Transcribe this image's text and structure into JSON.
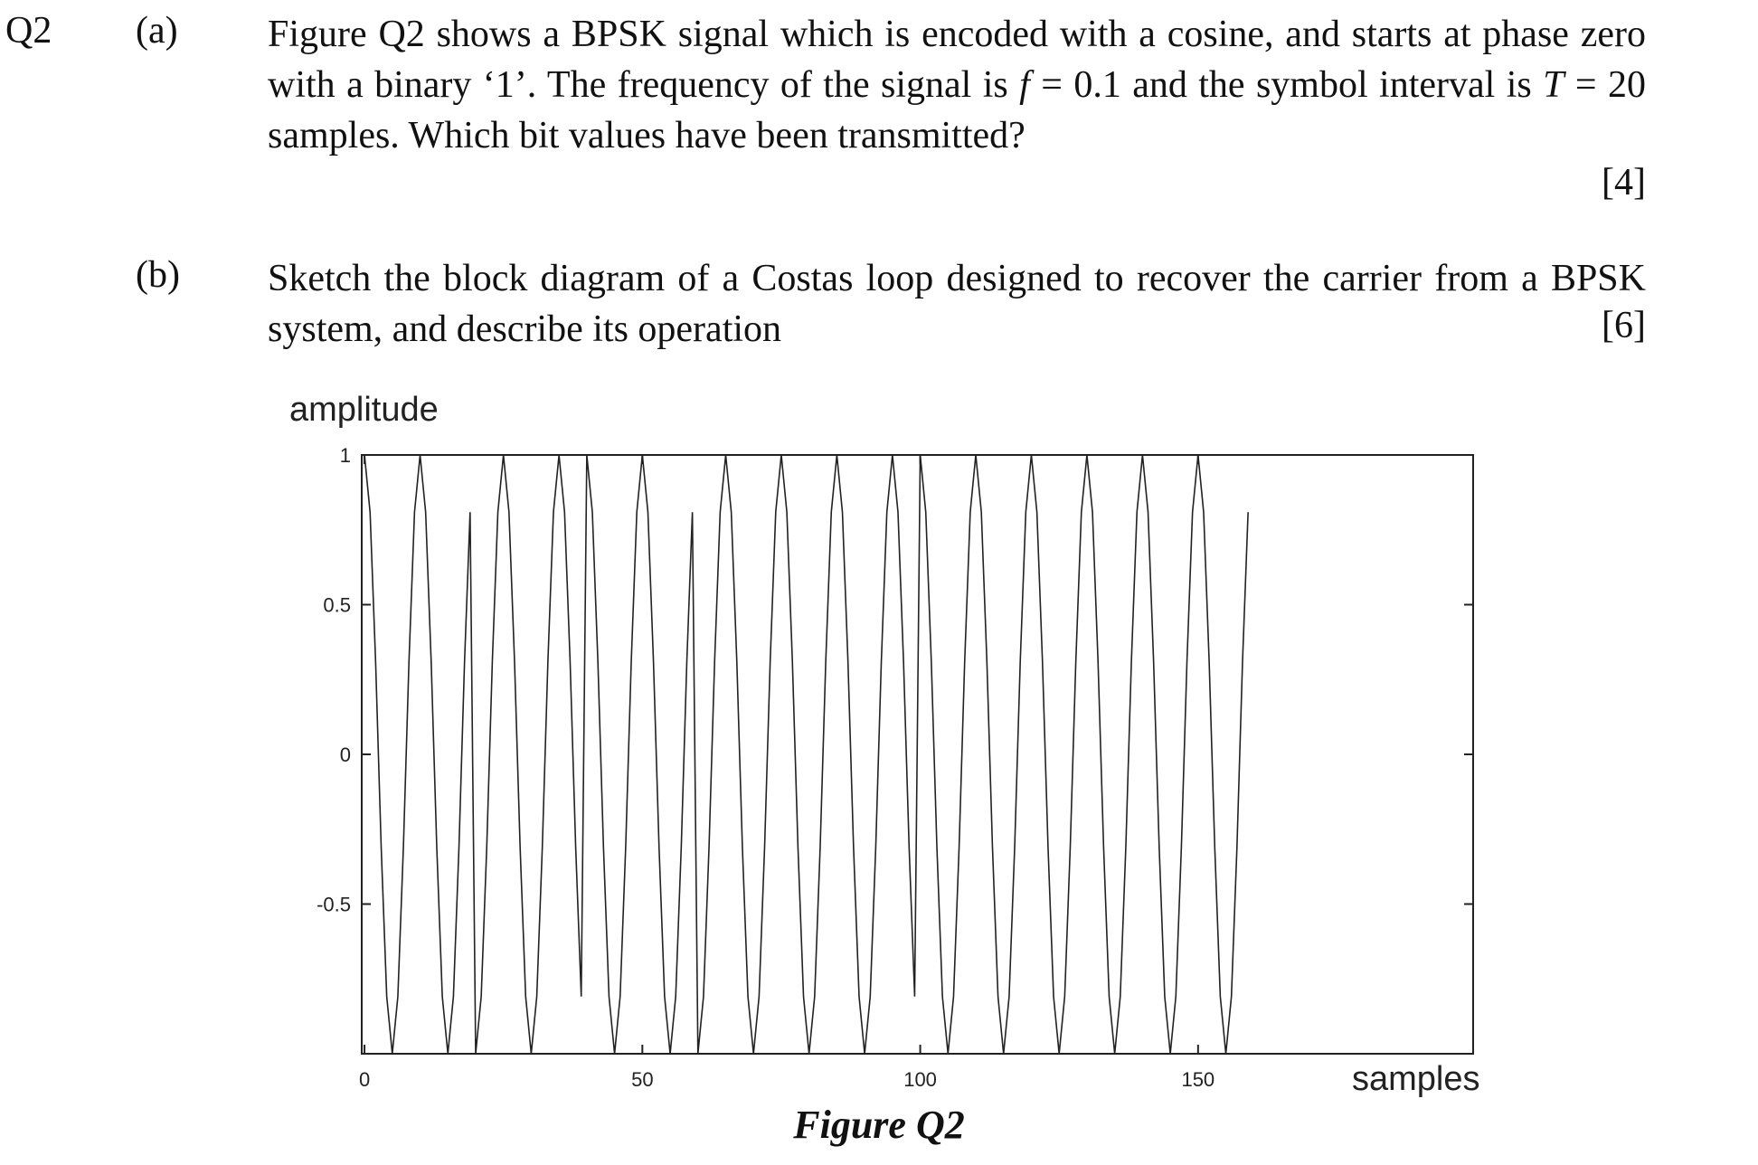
{
  "question": {
    "number": "Q2",
    "part_a": {
      "label": "(a)",
      "text_1": "Figure Q2 shows a BPSK signal which is encoded with a cosine, and starts at phase zero with a binary ‘1’. The frequency of the signal is ",
      "f_symbol": "f",
      "text_2": " = 0.1 and the symbol interval is ",
      "T_symbol": "T",
      "text_3": " = 20 samples. Which bit values have been transmitted?",
      "marks": "[4]"
    },
    "part_b": {
      "label": "(b)",
      "text": "Sketch the block diagram of a Costas loop designed to recover the carrier from a BPSK system, and describe its operation",
      "marks": "[6]"
    }
  },
  "figure": {
    "caption": "Figure Q2"
  },
  "chart_data": {
    "type": "line",
    "ylabel": "amplitude",
    "xlabel": "samples",
    "xlim": [
      -0.5,
      199.5
    ],
    "ylim": [
      -1,
      1
    ],
    "xticks": [
      0,
      50,
      100,
      150
    ],
    "xtick_labels": [
      "0",
      "50",
      "100",
      "150"
    ],
    "yticks": [
      1,
      0.5,
      0,
      -0.5
    ],
    "ytick_labels": [
      "1",
      "0.5",
      "0",
      "-0.5"
    ],
    "grid": false,
    "series": [
      {
        "x": [
          0,
          1,
          2,
          3,
          4,
          5,
          6,
          7,
          8,
          9,
          10,
          11,
          12,
          13,
          14,
          15,
          16,
          17,
          18,
          19,
          20,
          21,
          22,
          23,
          24,
          25,
          26,
          27,
          28,
          29,
          30,
          31,
          32,
          33,
          34,
          35,
          36,
          37,
          38,
          39,
          40,
          41,
          42,
          43,
          44,
          45,
          46,
          47,
          48,
          49,
          50,
          51,
          52,
          53,
          54,
          55,
          56,
          57,
          58,
          59,
          60,
          61,
          62,
          63,
          64,
          65,
          66,
          67,
          68,
          69,
          70,
          71,
          72,
          73,
          74,
          75,
          76,
          77,
          78,
          79,
          80,
          81,
          82,
          83,
          84,
          85,
          86,
          87,
          88,
          89,
          90,
          91,
          92,
          93,
          94,
          95,
          96,
          97,
          98,
          99,
          100,
          101,
          102,
          103,
          104,
          105,
          106,
          107,
          108,
          109,
          110,
          111,
          112,
          113,
          114,
          115,
          116,
          117,
          118,
          119,
          120,
          121,
          122,
          123,
          124,
          125,
          126,
          127,
          128,
          129,
          130,
          131,
          132,
          133,
          134,
          135,
          136,
          137,
          138,
          139,
          140,
          141,
          142,
          143,
          144,
          145,
          146,
          147,
          148,
          149,
          150,
          151,
          152,
          153,
          154,
          155,
          156,
          157,
          158,
          159
        ],
        "y": [
          1,
          0.809,
          0.309,
          -0.309,
          -0.809,
          -1,
          -0.809,
          -0.309,
          0.309,
          0.809,
          1,
          0.809,
          0.309,
          -0.309,
          -0.809,
          -1,
          -0.809,
          -0.309,
          0.309,
          0.809,
          -1,
          -0.809,
          -0.309,
          0.309,
          0.809,
          1,
          0.809,
          0.309,
          -0.309,
          -0.809,
          -1,
          -0.809,
          -0.309,
          0.309,
          0.809,
          1,
          0.809,
          0.309,
          -0.309,
          -0.809,
          1,
          0.809,
          0.309,
          -0.309,
          -0.809,
          -1,
          -0.809,
          -0.309,
          0.309,
          0.809,
          1,
          0.809,
          0.309,
          -0.309,
          -0.809,
          -1,
          -0.809,
          -0.309,
          0.309,
          0.809,
          -1,
          -0.809,
          -0.309,
          0.309,
          0.809,
          1,
          0.809,
          0.309,
          -0.309,
          -0.809,
          -1,
          -0.809,
          -0.309,
          0.309,
          0.809,
          1,
          0.809,
          0.309,
          -0.309,
          -0.809,
          -1,
          -0.809,
          -0.309,
          0.309,
          0.809,
          1,
          0.809,
          0.309,
          -0.309,
          -0.809,
          -1,
          -0.809,
          -0.309,
          0.309,
          0.809,
          1,
          0.809,
          0.309,
          -0.309,
          -0.809,
          1,
          0.809,
          0.309,
          -0.309,
          -0.809,
          -1,
          -0.809,
          -0.309,
          0.309,
          0.809,
          1,
          0.809,
          0.309,
          -0.309,
          -0.809,
          -1,
          -0.809,
          -0.309,
          0.309,
          0.809,
          1,
          0.809,
          0.309,
          -0.309,
          -0.809,
          -1,
          -0.809,
          -0.309,
          0.309,
          0.809,
          1,
          0.809,
          0.309,
          -0.309,
          -0.809,
          -1,
          -0.809,
          -0.309,
          0.309,
          0.809,
          1,
          0.809,
          0.309,
          -0.309,
          -0.809,
          -1,
          -0.809,
          -0.309,
          0.309,
          0.809,
          1,
          0.809,
          0.309,
          -0.309,
          -0.809,
          -1,
          -0.809,
          -0.309,
          0.309,
          0.809
        ]
      }
    ]
  }
}
